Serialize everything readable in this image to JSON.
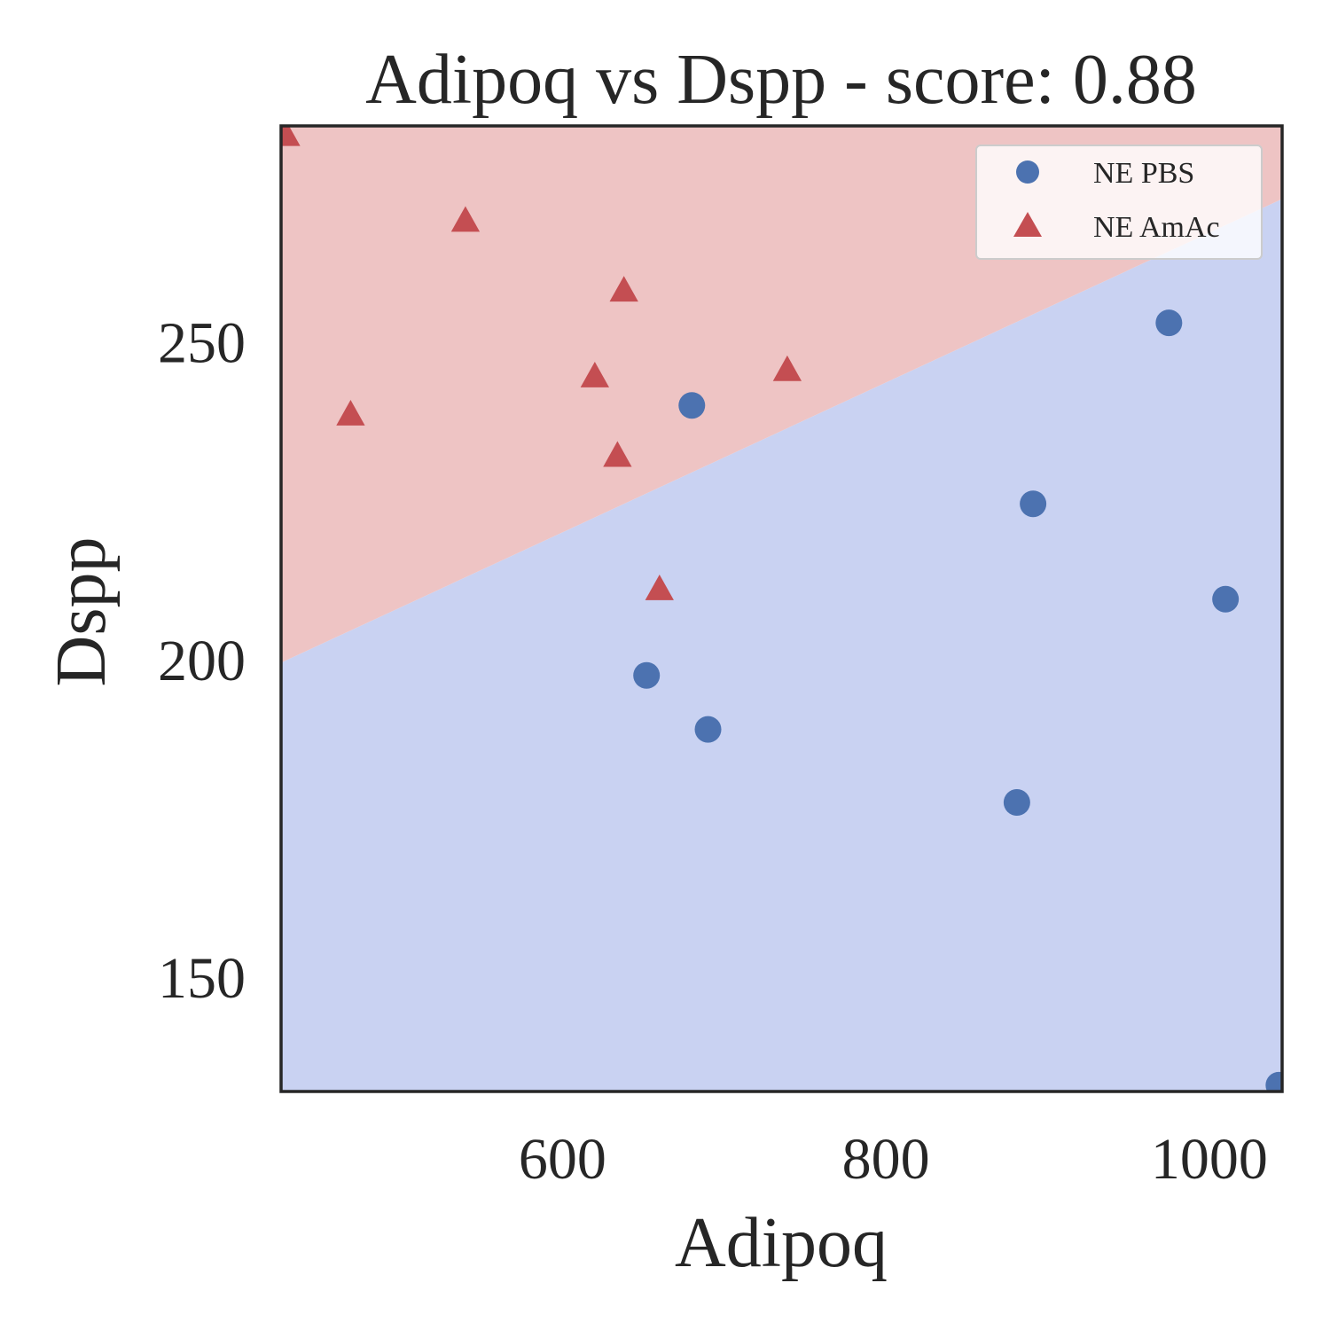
{
  "chart_data": {
    "type": "scatter",
    "title": "Adipoq vs Dspp - score: 0.88",
    "xlabel": "Adipoq",
    "ylabel": "Dspp",
    "xlim": [
      426,
      1045
    ],
    "ylim": [
      132,
      284
    ],
    "xticks": [
      {
        "value": 600,
        "label": "600"
      },
      {
        "value": 800,
        "label": "800"
      },
      {
        "value": 1000,
        "label": "1000"
      }
    ],
    "yticks": [
      {
        "value": 150,
        "label": "150"
      },
      {
        "value": 200,
        "label": "200"
      },
      {
        "value": 250,
        "label": "250"
      }
    ],
    "grid": false,
    "legend_position": "top-right",
    "decision_boundary": {
      "x": [
        426,
        1045
      ],
      "y": [
        199.5,
        272.5
      ],
      "above_class": "NE AmAc",
      "below_class": "NE PBS",
      "above_color": "#eec4c4",
      "below_color": "#c9d2f2"
    },
    "series": [
      {
        "name": "NE PBS",
        "marker": "circle",
        "color": "#4c72b0",
        "points": [
          {
            "x": 680,
            "y": 240
          },
          {
            "x": 975,
            "y": 253
          },
          {
            "x": 891,
            "y": 224.5
          },
          {
            "x": 1010,
            "y": 209.5
          },
          {
            "x": 652,
            "y": 197.5
          },
          {
            "x": 690,
            "y": 189
          },
          {
            "x": 881,
            "y": 177.5
          },
          {
            "x": 1043,
            "y": 133
          }
        ]
      },
      {
        "name": "NE AmAc",
        "marker": "triangle",
        "color": "#c44e52",
        "points": [
          {
            "x": 429,
            "y": 282.5
          },
          {
            "x": 540,
            "y": 269
          },
          {
            "x": 638,
            "y": 258
          },
          {
            "x": 469,
            "y": 238.5
          },
          {
            "x": 620,
            "y": 244.5
          },
          {
            "x": 739,
            "y": 245.5
          },
          {
            "x": 634,
            "y": 232
          },
          {
            "x": 660,
            "y": 211
          }
        ]
      }
    ]
  }
}
